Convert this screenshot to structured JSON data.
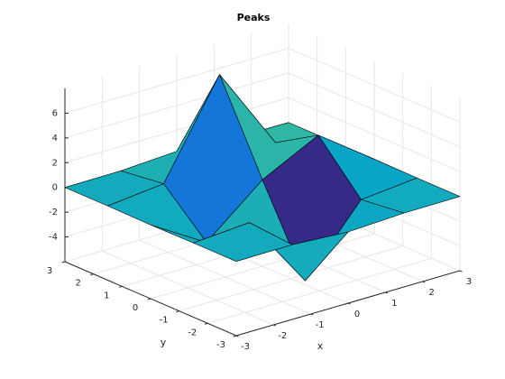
{
  "chart_data": {
    "type": "surface",
    "title": "Peaks",
    "xlabel": "x",
    "ylabel": "y",
    "x": [
      -3,
      -1.5,
      0,
      1.5,
      3
    ],
    "y": [
      -3,
      -1.5,
      0,
      1.5,
      3
    ],
    "z": [
      [
        0,
        0.04,
        -0.24,
        -0.03,
        0
      ],
      [
        0,
        0.33,
        -5.68,
        -0.44,
        0
      ],
      [
        -0.04,
        -2.77,
        0.98,
        3.27,
        0.03
      ],
      [
        0,
        0.48,
        7.99,
        1.18,
        0
      ],
      [
        0,
        0.03,
        0.3,
        0.03,
        0
      ]
    ],
    "xlim": [
      -3,
      3
    ],
    "ylim": [
      -3,
      3
    ],
    "zlim": [
      -6,
      8
    ],
    "xticks": [
      -3,
      -2,
      -1,
      0,
      1,
      2,
      3
    ],
    "yticks": [
      -3,
      -2,
      -1,
      0,
      1,
      2,
      3
    ],
    "zticks": [
      -4,
      -2,
      0,
      2,
      4,
      6
    ],
    "grid": true,
    "edge_color": "#000000",
    "colormap": [
      "#352a87",
      "#0f5cdd",
      "#1481d6",
      "#06a4ca",
      "#2eb7a4",
      "#87bf77",
      "#d1bb59",
      "#fec832",
      "#f9fb0e"
    ]
  }
}
